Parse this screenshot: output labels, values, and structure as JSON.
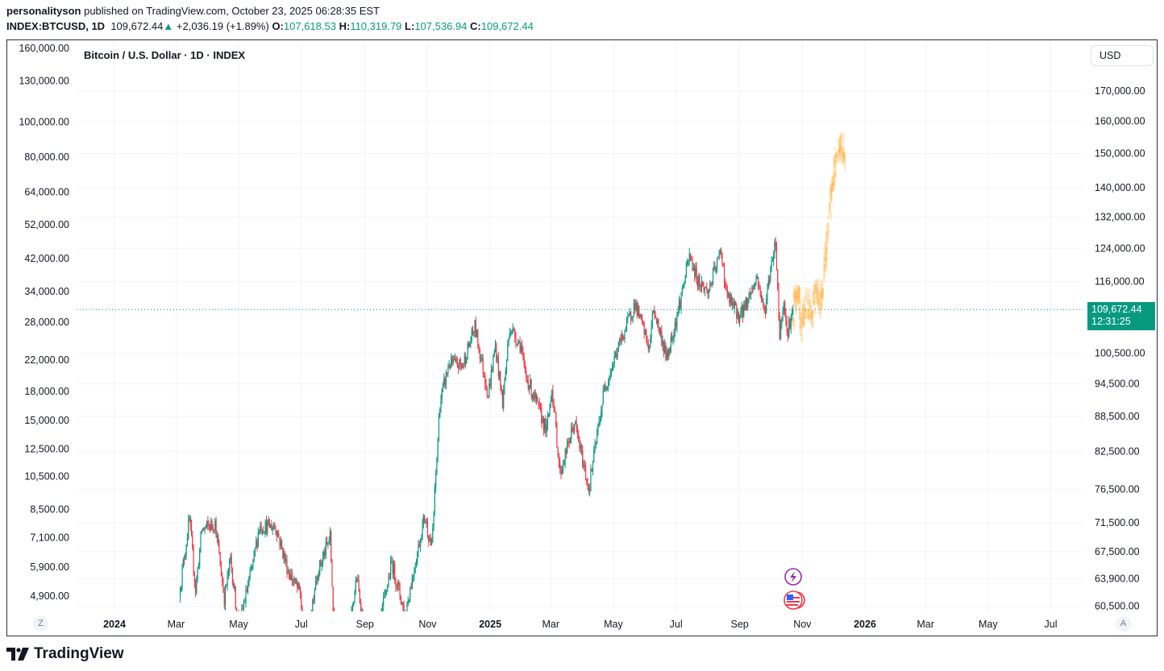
{
  "header": {
    "author": "personalityson",
    "published_text": "published on TradingView.com, October 23, 2025 06:28:35 EST",
    "symbol": "INDEX:BTCUSD, 1D",
    "last": "109,672.44",
    "change": "+2,036.19 (+1.89%)",
    "open_label": "O:",
    "open": "107,618.53",
    "high_label": "H:",
    "high": "110,319.79",
    "low_label": "L:",
    "low": "107,536.94",
    "close_label": "C:",
    "close": "109,672.44"
  },
  "chart": {
    "title": "Bitcoin / U.S. Dollar · 1D · INDEX",
    "currency_button": "USD",
    "price_label": "109,672.44",
    "countdown": "12:31:25",
    "auto_scale_button": "A",
    "left_scale_button": "Z",
    "brand": "TradingView",
    "colors": {
      "up": "#089981",
      "down": "#f23645",
      "projection": "#ffa726",
      "price_line": "#089981"
    },
    "event_icons": [
      "lightning-icon",
      "us-flag-icon"
    ]
  },
  "chart_data": {
    "type": "candlestick",
    "title": "Bitcoin / U.S. Dollar · 1D · INDEX",
    "scale": "log",
    "grid": true,
    "x_ticks": [
      {
        "label": "2024",
        "date": "2024-01-01",
        "bold": true
      },
      {
        "label": "Mar",
        "date": "2024-03-01"
      },
      {
        "label": "May",
        "date": "2024-05-01"
      },
      {
        "label": "Jul",
        "date": "2024-07-01"
      },
      {
        "label": "Sep",
        "date": "2024-09-01"
      },
      {
        "label": "Nov",
        "date": "2024-11-01"
      },
      {
        "label": "2025",
        "date": "2025-01-01",
        "bold": true
      },
      {
        "label": "Mar",
        "date": "2025-03-01"
      },
      {
        "label": "May",
        "date": "2025-05-01"
      },
      {
        "label": "Jul",
        "date": "2025-07-01"
      },
      {
        "label": "Sep",
        "date": "2025-09-01"
      },
      {
        "label": "Nov",
        "date": "2025-11-01"
      },
      {
        "label": "2026",
        "date": "2026-01-01",
        "bold": true
      },
      {
        "label": "Mar",
        "date": "2026-03-01"
      },
      {
        "label": "May",
        "date": "2026-05-01"
      },
      {
        "label": "Jul",
        "date": "2026-07-01"
      }
    ],
    "right_axis_ticks": [
      "170,000.00",
      "160,000.00",
      "150,000.00",
      "140,000.00",
      "132,000.00",
      "124,000.00",
      "116,000.00",
      "100,500.00",
      "94,500.00",
      "88,500.00",
      "82,500.00",
      "76,500.00",
      "71,500.00",
      "67,500.00",
      "63,900.00",
      "60,500.00"
    ],
    "right_axis_values": [
      170000,
      160000,
      150000,
      140000,
      132000,
      124000,
      116000,
      100500,
      94500,
      88500,
      82500,
      76500,
      71500,
      67500,
      63900,
      60500
    ],
    "left_axis_ticks": [
      "160,000.00",
      "130,000.00",
      "100,000.00",
      "80,000.00",
      "64,000.00",
      "52,000.00",
      "42,000.00",
      "34,000.00",
      "28,000.00",
      "22,000.00",
      "18,000.00",
      "15,000.00",
      "12,500.00",
      "10,500.00",
      "8,500.00",
      "7,100.00",
      "5,900.00",
      "4,900.00"
    ],
    "left_axis_values": [
      160000,
      130000,
      100000,
      80000,
      64000,
      52000,
      42000,
      34000,
      28000,
      22000,
      18000,
      15000,
      12500,
      10500,
      8500,
      7100,
      5900,
      4900
    ],
    "last_price": 109672.44,
    "price_path": [
      [
        "2024-03-05",
        63000
      ],
      [
        "2024-03-14",
        72000
      ],
      [
        "2024-03-20",
        62500
      ],
      [
        "2024-03-26",
        70500
      ],
      [
        "2024-04-08",
        71500
      ],
      [
        "2024-04-17",
        61500
      ],
      [
        "2024-04-23",
        66500
      ],
      [
        "2024-05-01",
        58000
      ],
      [
        "2024-05-15",
        66000
      ],
      [
        "2024-05-21",
        71000
      ],
      [
        "2024-06-06",
        71000
      ],
      [
        "2024-06-18",
        65000
      ],
      [
        "2024-06-30",
        62000
      ],
      [
        "2024-07-05",
        55000
      ],
      [
        "2024-07-15",
        64000
      ],
      [
        "2024-07-29",
        69500
      ],
      [
        "2024-08-05",
        50000
      ],
      [
        "2024-08-24",
        64000
      ],
      [
        "2024-09-06",
        53000
      ],
      [
        "2024-09-27",
        66000
      ],
      [
        "2024-10-10",
        59500
      ],
      [
        "2024-10-29",
        72500
      ],
      [
        "2024-11-05",
        68000
      ],
      [
        "2024-11-13",
        91000
      ],
      [
        "2024-11-22",
        98500
      ],
      [
        "2024-12-05",
        98000
      ],
      [
        "2024-12-17",
        106000
      ],
      [
        "2024-12-30",
        92500
      ],
      [
        "2025-01-06",
        102000
      ],
      [
        "2025-01-13",
        91000
      ],
      [
        "2025-01-20",
        106000
      ],
      [
        "2025-01-31",
        102000
      ],
      [
        "2025-02-03",
        97000
      ],
      [
        "2025-02-25",
        86000
      ],
      [
        "2025-03-02",
        94000
      ],
      [
        "2025-03-10",
        79000
      ],
      [
        "2025-03-24",
        87500
      ],
      [
        "2025-04-07",
        76500
      ],
      [
        "2025-04-22",
        93500
      ],
      [
        "2025-05-08",
        103000
      ],
      [
        "2025-05-22",
        111000
      ],
      [
        "2025-06-05",
        101500
      ],
      [
        "2025-06-09",
        110000
      ],
      [
        "2025-06-22",
        99500
      ],
      [
        "2025-07-03",
        109500
      ],
      [
        "2025-07-14",
        122000
      ],
      [
        "2025-07-22",
        116500
      ],
      [
        "2025-08-01",
        113500
      ],
      [
        "2025-08-14",
        123500
      ],
      [
        "2025-08-19",
        113000
      ],
      [
        "2025-09-01",
        108000
      ],
      [
        "2025-09-18",
        117000
      ],
      [
        "2025-09-25",
        109000
      ],
      [
        "2025-10-03",
        122500
      ],
      [
        "2025-10-06",
        125500
      ],
      [
        "2025-10-10",
        104000
      ],
      [
        "2025-10-14",
        112500
      ],
      [
        "2025-10-17",
        104500
      ],
      [
        "2025-10-23",
        109672
      ]
    ],
    "projection_path": [
      [
        "2025-10-23",
        110000
      ],
      [
        "2025-10-28",
        114000
      ],
      [
        "2025-11-01",
        106000
      ],
      [
        "2025-11-05",
        112000
      ],
      [
        "2025-11-10",
        108000
      ],
      [
        "2025-11-14",
        114000
      ],
      [
        "2025-11-18",
        110000
      ],
      [
        "2025-11-22",
        118000
      ],
      [
        "2025-11-25",
        125000
      ],
      [
        "2025-11-28",
        135000
      ],
      [
        "2025-12-01",
        142000
      ],
      [
        "2025-12-05",
        150000
      ],
      [
        "2025-12-09",
        153000
      ],
      [
        "2025-12-12",
        149000
      ]
    ]
  }
}
